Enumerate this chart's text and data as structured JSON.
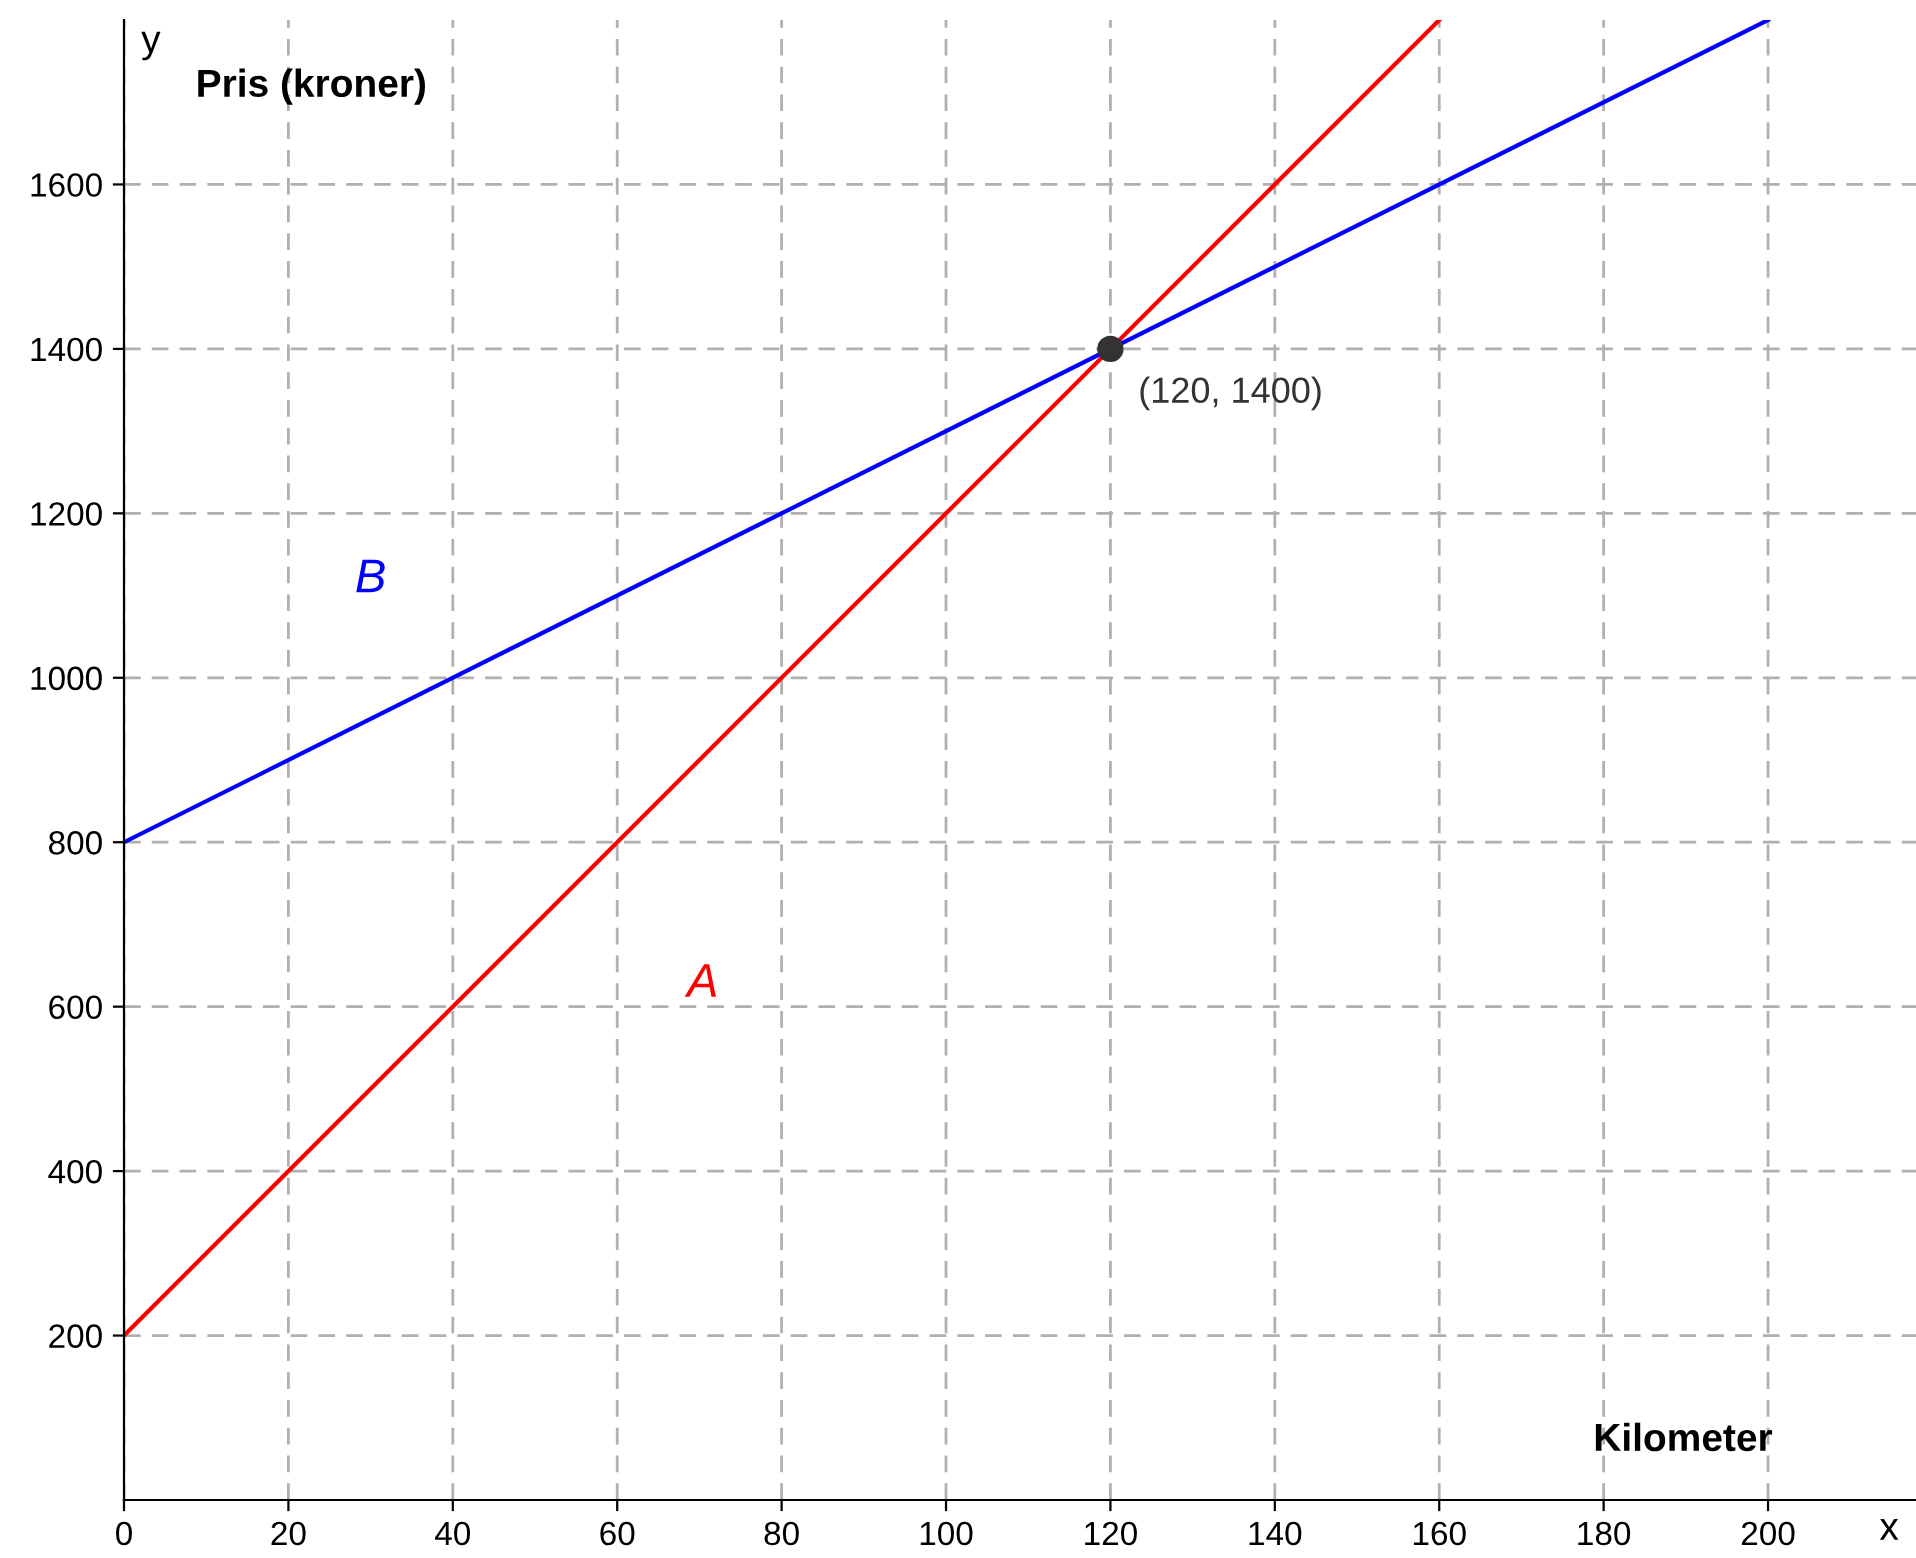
{
  "chart_data": {
    "type": "line",
    "xlabel": "Kilometer",
    "ylabel": "Pris (kroner)",
    "xlim": [
      0,
      218
    ],
    "ylim": [
      0,
      1800
    ],
    "xticks": [
      0,
      20,
      40,
      60,
      80,
      100,
      120,
      140,
      160,
      180,
      200
    ],
    "yticks": [
      200,
      400,
      600,
      800,
      1000,
      1200,
      1400,
      1600
    ],
    "grid": true,
    "legend": false,
    "series": [
      {
        "name": "A",
        "color": "#ff0000",
        "x": [
          0,
          160
        ],
        "values": [
          200,
          1800
        ]
      },
      {
        "name": "B",
        "color": "#0000ff",
        "x": [
          0,
          200
        ],
        "values": [
          800,
          1800
        ]
      },
      {
        "type": "scatter",
        "color": "#333333",
        "marker": "circle",
        "x": [
          120
        ],
        "values": [
          1400
        ]
      }
    ],
    "annotations": [
      {
        "text": "(120, 1400)",
        "x": 120,
        "y": 1400
      },
      "x",
      "y"
    ]
  }
}
